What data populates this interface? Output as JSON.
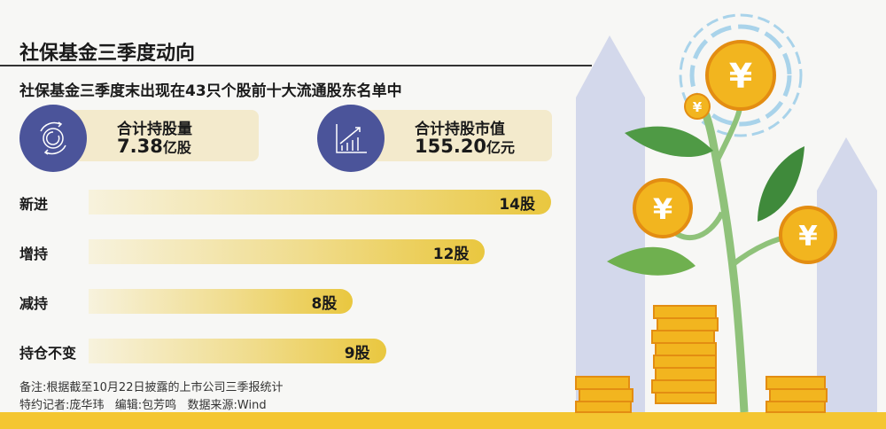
{
  "header": {
    "title": "社保基金三季度动向",
    "subtitle": "社保基金三季度末出现在43只个股前十大流通股东名单中"
  },
  "cards": [
    {
      "label": "合计持股量",
      "value": "7.38",
      "unit": "亿股",
      "icon": "gear-cycle-icon"
    },
    {
      "label": "合计持股市值",
      "value": "155.20",
      "unit": "亿元",
      "icon": "growth-chart-icon"
    }
  ],
  "chart_data": {
    "type": "bar",
    "orientation": "horizontal",
    "categories": [
      "新进",
      "增持",
      "减持",
      "持仓不变"
    ],
    "values": [
      14,
      12,
      8,
      9
    ],
    "value_labels": [
      "14股",
      "12股",
      "8股",
      "9股"
    ],
    "unit": "股",
    "xlim": [
      0,
      14
    ]
  },
  "footer": {
    "note": "备注:根据截至10月22日披露的上市公司三季报统计",
    "credits": "特约记者:庞华玮   编辑:包芳鸣   数据来源:Wind"
  },
  "colors": {
    "accent": "#4b549a",
    "bar": "#e9c73f",
    "band": "#f4c631",
    "card": "#f3eacc"
  }
}
